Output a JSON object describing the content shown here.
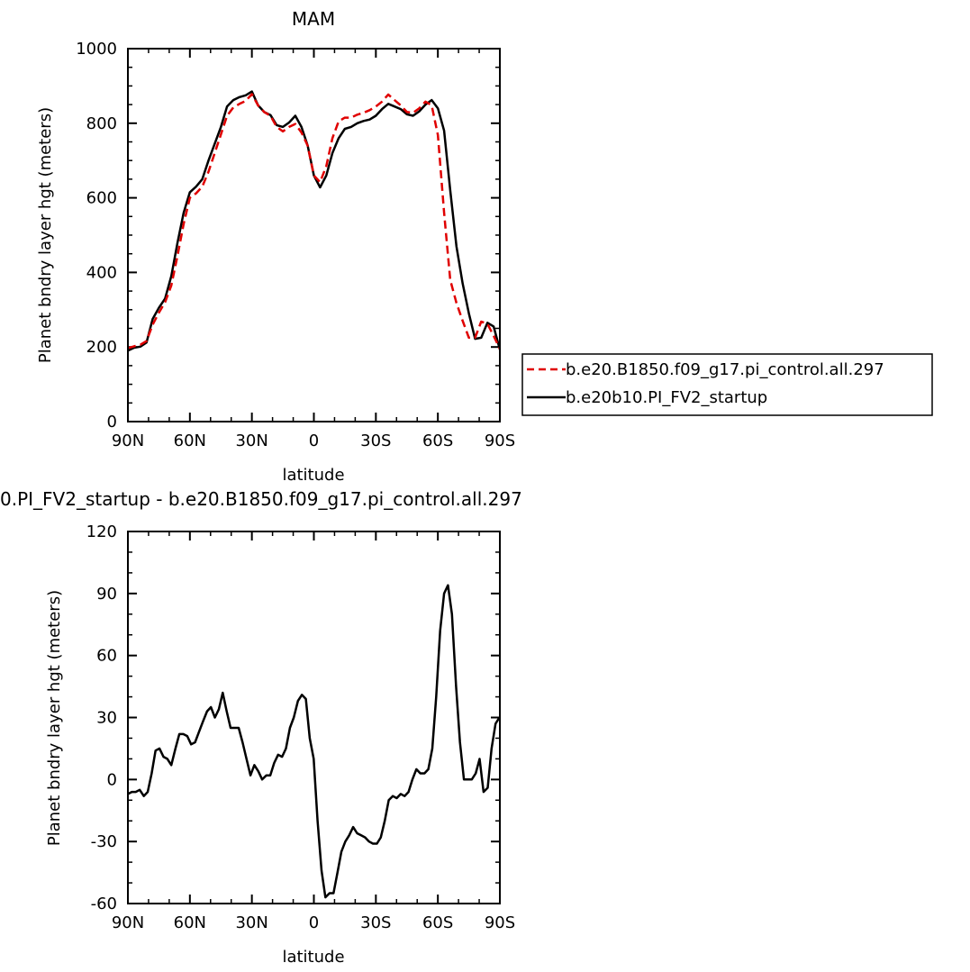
{
  "chart_data": [
    {
      "type": "line",
      "title": "MAM",
      "xlabel": "latitude",
      "ylabel": "Planet bndry layer hgt (meters)",
      "xlim": [
        90,
        -90
      ],
      "ylim": [
        0,
        1000
      ],
      "xticks": [
        90,
        60,
        30,
        0,
        -30,
        -60,
        -90
      ],
      "xtick_labels": [
        "90N",
        "60N",
        "30N",
        "0",
        "30S",
        "60S",
        "90S"
      ],
      "yticks": [
        0,
        200,
        400,
        600,
        800,
        1000
      ],
      "ytick_labels": [
        "0",
        "200",
        "400",
        "600",
        "800",
        "1000"
      ],
      "legend": "right",
      "series": [
        {
          "name": "b.e20.B1850.f09_g17.pi_control.all.297",
          "color": "#e00000",
          "dash": "dashed",
          "x": [
            90,
            87,
            84,
            81,
            78,
            75,
            72,
            69,
            66,
            63,
            60,
            57,
            54,
            51,
            48,
            45,
            42,
            39,
            36,
            33,
            30,
            27,
            24,
            21,
            18,
            15,
            12,
            9,
            6,
            3,
            0,
            -3,
            -6,
            -9,
            -12,
            -15,
            -18,
            -21,
            -24,
            -27,
            -30,
            -33,
            -36,
            -39,
            -42,
            -45,
            -48,
            -51,
            -54,
            -57,
            -60,
            -63,
            -66,
            -69,
            -72,
            -75,
            -78,
            -81,
            -84,
            -87,
            -90
          ],
          "y": [
            197,
            202,
            206,
            216,
            260,
            292,
            320,
            365,
            445,
            530,
            600,
            612,
            630,
            670,
            720,
            770,
            820,
            842,
            852,
            860,
            878,
            848,
            830,
            820,
            790,
            778,
            790,
            798,
            775,
            740,
            660,
            642,
            685,
            760,
            805,
            815,
            815,
            823,
            828,
            835,
            845,
            858,
            877,
            862,
            848,
            830,
            828,
            840,
            858,
            848,
            768,
            560,
            380,
            318,
            270,
            225,
            225,
            268,
            262,
            230,
            195
          ]
        },
        {
          "name": "b.e20b10.PI_FV2_startup",
          "color": "#000000",
          "dash": "solid",
          "x": [
            90,
            87,
            84,
            81,
            78,
            75,
            72,
            69,
            66,
            63,
            60,
            57,
            54,
            51,
            48,
            45,
            42,
            39,
            36,
            33,
            30,
            27,
            24,
            21,
            18,
            15,
            12,
            9,
            6,
            3,
            0,
            -3,
            -6,
            -9,
            -12,
            -15,
            -18,
            -21,
            -24,
            -27,
            -30,
            -33,
            -36,
            -39,
            -42,
            -45,
            -48,
            -51,
            -54,
            -57,
            -60,
            -63,
            -66,
            -69,
            -72,
            -75,
            -78,
            -81,
            -84,
            -87,
            -90
          ],
          "y": [
            190,
            198,
            201,
            212,
            275,
            305,
            330,
            390,
            480,
            560,
            615,
            630,
            650,
            700,
            745,
            790,
            845,
            862,
            870,
            875,
            885,
            848,
            830,
            822,
            795,
            790,
            802,
            820,
            790,
            740,
            660,
            628,
            660,
            720,
            760,
            785,
            790,
            800,
            806,
            810,
            820,
            838,
            852,
            845,
            838,
            824,
            820,
            832,
            850,
            862,
            840,
            780,
            620,
            470,
            370,
            290,
            222,
            225,
            265,
            255,
            193
          ]
        }
      ]
    },
    {
      "type": "line",
      "title": "0.PI_FV2_startup - b.e20.B1850.f09_g17.pi_control.all.297",
      "xlabel": "latitude",
      "ylabel": "Planet bndry layer hgt (meters)",
      "xlim": [
        90,
        -90
      ],
      "ylim": [
        -60,
        120
      ],
      "xticks": [
        90,
        60,
        30,
        0,
        -30,
        -60,
        -90
      ],
      "xtick_labels": [
        "90N",
        "60N",
        "30N",
        "0",
        "30S",
        "60S",
        "90S"
      ],
      "yticks": [
        -60,
        -30,
        0,
        30,
        60,
        90,
        120
      ],
      "ytick_labels": [
        "-60",
        "-30",
        "0",
        "30",
        "60",
        "90",
        "120"
      ],
      "series": [
        {
          "color": "#000000",
          "dash": "solid",
          "x": [
            90,
            88.1,
            86.2,
            84.3,
            82.3,
            80.4,
            78.5,
            76.6,
            74.7,
            72.8,
            70.9,
            69.0,
            67.0,
            65.1,
            63.2,
            61.3,
            59.4,
            57.5,
            55.6,
            53.7,
            51.7,
            49.8,
            47.9,
            46.0,
            44.1,
            42.2,
            40.3,
            38.4,
            36.4,
            34.5,
            32.6,
            30.7,
            28.8,
            26.9,
            25.0,
            23.0,
            21.1,
            19.2,
            17.3,
            15.4,
            13.5,
            11.6,
            9.7,
            7.7,
            5.8,
            3.9,
            2.0,
            0.1,
            -1.8,
            -3.7,
            -5.6,
            -7.6,
            -9.5,
            -11.4,
            -13.3,
            -15.2,
            -17.1,
            -19.0,
            -20.9,
            -22.9,
            -24.8,
            -26.7,
            -28.6,
            -30.5,
            -32.4,
            -34.3,
            -36.2,
            -38.2,
            -40.1,
            -42.0,
            -43.9,
            -45.8,
            -47.7,
            -49.6,
            -51.5,
            -53.5,
            -55.4,
            -57.3,
            -59.2,
            -61.1,
            -63.0,
            -64.9,
            -66.8,
            -68.8,
            -70.7,
            -72.6,
            -74.5,
            -76.4,
            -78.3,
            -80.2,
            -82.1,
            -84.1,
            -86.0,
            -87.9,
            -89.8
          ],
          "y": [
            -7,
            -6,
            -6,
            -5,
            -8,
            -6,
            3,
            14,
            15,
            11,
            10,
            7,
            15,
            22,
            22,
            21,
            17,
            18,
            23,
            28,
            33,
            35,
            30,
            34,
            42,
            33,
            25,
            25,
            25,
            18,
            10,
            2,
            7,
            4,
            0,
            2,
            2,
            8,
            12,
            11,
            15,
            25,
            30,
            38,
            41,
            39,
            20,
            10,
            -20,
            -44,
            -57,
            -55,
            -55,
            -45,
            -35,
            -30,
            -27,
            -23,
            -26,
            -27,
            -28,
            -30,
            -31,
            -31,
            -28,
            -20,
            -10,
            -8,
            -9,
            -7,
            -8,
            -6,
            0,
            5,
            3,
            3,
            5,
            15,
            40,
            72,
            90,
            94,
            80,
            45,
            18,
            0,
            0,
            0,
            3,
            10,
            -6,
            -4,
            15,
            27,
            30
          ]
        }
      ]
    }
  ]
}
